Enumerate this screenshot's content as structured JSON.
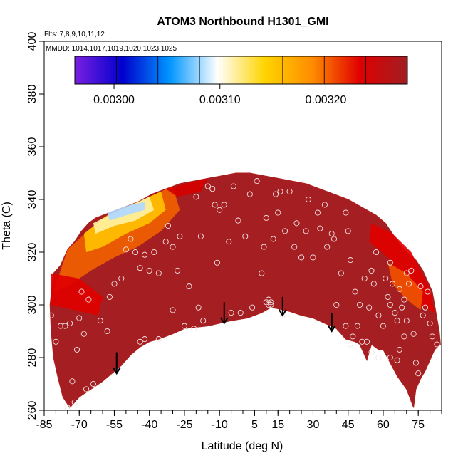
{
  "chart_data": {
    "type": "heatmap",
    "title": "ATOM3 Northbound H1301_GMI",
    "subtitle_flights": "Flts: 7,8,9,10,11,12",
    "subtitle_dates": "MMDD: 1014,1017,1019,1020,1023,1025",
    "xlabel": "Latitude (deg N)",
    "ylabel": "Theta (C)",
    "xlim": [
      -85,
      85
    ],
    "ylim": [
      260,
      400
    ],
    "x_ticks": [
      -85,
      -70,
      -55,
      -40,
      -25,
      -10,
      5,
      15,
      30,
      45,
      60,
      75
    ],
    "y_ticks": [
      260,
      280,
      300,
      320,
      340,
      360,
      380,
      400
    ],
    "colorbar": {
      "min": 0.002963,
      "max": 0.003277,
      "ticks": [
        0.003,
        0.0031,
        0.0032
      ],
      "tick_labels": [
        "0.00300",
        "0.00310",
        "0.00320"
      ],
      "stops": [
        "#7a1fe0",
        "#0000cd",
        "#0096ff",
        "#ffffff",
        "#ffd400",
        "#ff8c00",
        "#e00000",
        "#a01e22"
      ]
    },
    "field_colors": {
      "base": "#a41e22",
      "outline": "#b01f1f"
    },
    "field_boundary": [
      [
        -81,
        312
      ],
      [
        -78,
        315
      ],
      [
        -75,
        321
      ],
      [
        -72,
        324
      ],
      [
        -69,
        328
      ],
      [
        -66,
        331
      ],
      [
        -63,
        333
      ],
      [
        -57,
        335
      ],
      [
        -51,
        337
      ],
      [
        -45,
        339
      ],
      [
        -39,
        342
      ],
      [
        -33,
        344
      ],
      [
        -27,
        346
      ],
      [
        -21,
        347
      ],
      [
        -15,
        348
      ],
      [
        -9,
        349
      ],
      [
        -3,
        350
      ],
      [
        3,
        350
      ],
      [
        9,
        349
      ],
      [
        15,
        348
      ],
      [
        21,
        347
      ],
      [
        27,
        346
      ],
      [
        33,
        344
      ],
      [
        39,
        342
      ],
      [
        45,
        340
      ],
      [
        51,
        337
      ],
      [
        57,
        334
      ],
      [
        61,
        331
      ],
      [
        64,
        327
      ],
      [
        67,
        323
      ],
      [
        70,
        320
      ],
      [
        74,
        317
      ],
      [
        77,
        313
      ],
      [
        79,
        309
      ],
      [
        81,
        305
      ],
      [
        82,
        300
      ],
      [
        83,
        295
      ],
      [
        84,
        290
      ],
      [
        84.5,
        285
      ],
      [
        82,
        283
      ],
      [
        80,
        279
      ],
      [
        78,
        275
      ],
      [
        76,
        272
      ],
      [
        74,
        268
      ],
      [
        73,
        261
      ],
      [
        70,
        268
      ],
      [
        66,
        273
      ],
      [
        63,
        278
      ],
      [
        60,
        283
      ],
      [
        58,
        283
      ],
      [
        55,
        285
      ],
      [
        53,
        279
      ],
      [
        50,
        285
      ],
      [
        48,
        286
      ],
      [
        44,
        287
      ],
      [
        40,
        291
      ],
      [
        35,
        293
      ],
      [
        30,
        295
      ],
      [
        25,
        296
      ],
      [
        20,
        297.5
      ],
      [
        15,
        298.5
      ],
      [
        12,
        299
      ],
      [
        8,
        297
      ],
      [
        2,
        295
      ],
      [
        -5,
        294
      ],
      [
        -10,
        293
      ],
      [
        -15,
        292
      ],
      [
        -20,
        291.5
      ],
      [
        -25,
        291
      ],
      [
        -30,
        289
      ],
      [
        -36,
        287
      ],
      [
        -40,
        286
      ],
      [
        -44,
        284
      ],
      [
        -48,
        281
      ],
      [
        -52,
        277
      ],
      [
        -56,
        274
      ],
      [
        -60,
        271
      ],
      [
        -65,
        268
      ],
      [
        -70,
        265
      ],
      [
        -74,
        261
      ],
      [
        -77,
        265
      ],
      [
        -79,
        272
      ],
      [
        -81,
        280
      ],
      [
        -82,
        290
      ],
      [
        -82.5,
        300
      ]
    ],
    "high_regions": [
      {
        "name": "sh-upper-orange",
        "color": "#f06000",
        "points": [
          [
            -75,
            321
          ],
          [
            -60,
            333
          ],
          [
            -45,
            339
          ],
          [
            -30,
            345
          ],
          [
            -27,
            336
          ],
          [
            -35,
            328
          ],
          [
            -45,
            322
          ],
          [
            -55,
            318
          ],
          [
            -65,
            313
          ],
          [
            -75,
            307
          ],
          [
            -81,
            305
          ]
        ]
      },
      {
        "name": "sh-upper-yellow",
        "color": "#ffc000",
        "points": [
          [
            -68,
            327
          ],
          [
            -58,
            334
          ],
          [
            -45,
            339
          ],
          [
            -35,
            343
          ],
          [
            -33,
            336
          ],
          [
            -40,
            331
          ],
          [
            -50,
            327
          ],
          [
            -60,
            322
          ],
          [
            -67,
            320
          ]
        ]
      },
      {
        "name": "sh-upper-pale",
        "color": "#fff0a0",
        "points": [
          [
            -64,
            331
          ],
          [
            -55,
            335
          ],
          [
            -45,
            339
          ],
          [
            -40,
            341
          ],
          [
            -38,
            336
          ],
          [
            -46,
            332
          ],
          [
            -55,
            330
          ],
          [
            -63,
            327
          ]
        ]
      },
      {
        "name": "sh-upper-blue",
        "color": "#b0d8ff",
        "points": [
          [
            -58,
            335
          ],
          [
            -48,
            338
          ],
          [
            -42,
            339
          ],
          [
            -42,
            336
          ],
          [
            -50,
            334
          ],
          [
            -57,
            332
          ]
        ]
      },
      {
        "name": "sh-lower-red",
        "color": "#e00000",
        "points": [
          [
            -82,
            312
          ],
          [
            -70,
            310
          ],
          [
            -60,
            303
          ],
          [
            -62,
            296
          ],
          [
            -72,
            298
          ],
          [
            -82,
            300
          ]
        ]
      },
      {
        "name": "nh-red",
        "color": "#e00000",
        "points": [
          [
            55,
            331
          ],
          [
            64,
            327
          ],
          [
            72,
            320
          ],
          [
            80,
            306
          ],
          [
            82,
            297
          ],
          [
            76,
            300
          ],
          [
            70,
            308
          ],
          [
            62,
            318
          ],
          [
            54,
            324
          ]
        ]
      },
      {
        "name": "nh-orange",
        "color": "#f05000",
        "points": [
          [
            62,
            316
          ],
          [
            70,
            312
          ],
          [
            77,
            305
          ],
          [
            76,
            298
          ],
          [
            70,
            302
          ],
          [
            64,
            308
          ]
        ]
      },
      {
        "name": "nh-top-red",
        "color": "#d40000",
        "points": [
          [
            -33,
            344
          ],
          [
            -20,
            347
          ],
          [
            -15,
            348
          ],
          [
            -18,
            343
          ],
          [
            -28,
            341
          ]
        ]
      }
    ],
    "arrows": [
      {
        "lat": -54,
        "theta_top": 282,
        "theta_bottom": 274
      },
      {
        "lat": -8,
        "theta_top": 301,
        "theta_bottom": 293
      },
      {
        "lat": 17,
        "theta_top": 303,
        "theta_bottom": 296
      },
      {
        "lat": 38,
        "theta_top": 297,
        "theta_bottom": 290
      }
    ],
    "points": [
      [
        -82,
        296
      ],
      [
        -80,
        286
      ],
      [
        -78,
        292
      ],
      [
        -76,
        292
      ],
      [
        -74,
        293
      ],
      [
        -72,
        263
      ],
      [
        -75,
        261
      ],
      [
        -71,
        283
      ],
      [
        -69,
        305
      ],
      [
        -66,
        302
      ],
      [
        -64,
        270
      ],
      [
        -61,
        294
      ],
      [
        -57,
        303
      ],
      [
        -55,
        308
      ],
      [
        -52,
        310
      ],
      [
        -50,
        321
      ],
      [
        -48,
        325
      ],
      [
        -46,
        320
      ],
      [
        -44,
        314
      ],
      [
        -42,
        319
      ],
      [
        -40,
        313
      ],
      [
        -38,
        320
      ],
      [
        -36,
        312
      ],
      [
        -36,
        287
      ],
      [
        -33,
        324
      ],
      [
        -32,
        330
      ],
      [
        -30,
        322
      ],
      [
        -28,
        313
      ],
      [
        -27,
        326
      ],
      [
        -25,
        292
      ],
      [
        -23,
        307
      ],
      [
        -20,
        341
      ],
      [
        -19,
        299
      ],
      [
        -18,
        326
      ],
      [
        -17,
        294
      ],
      [
        -15,
        345
      ],
      [
        -13,
        344
      ],
      [
        -12,
        338
      ],
      [
        -11,
        316
      ],
      [
        -10,
        336
      ],
      [
        -8,
        338
      ],
      [
        -6,
        324
      ],
      [
        -4,
        345
      ],
      [
        -2,
        332
      ],
      [
        -1,
        297
      ],
      [
        1,
        326
      ],
      [
        3,
        342
      ],
      [
        4,
        299
      ],
      [
        6,
        347
      ],
      [
        8,
        312
      ],
      [
        9,
        322
      ],
      [
        10,
        333
      ],
      [
        11,
        302
      ],
      [
        12,
        301
      ],
      [
        13,
        325
      ],
      [
        14,
        342
      ],
      [
        15,
        335
      ],
      [
        16,
        343
      ],
      [
        17,
        296
      ],
      [
        18,
        328
      ],
      [
        20,
        343
      ],
      [
        22,
        322
      ],
      [
        23,
        331
      ],
      [
        25,
        318
      ],
      [
        27,
        328
      ],
      [
        28,
        340
      ],
      [
        30,
        318
      ],
      [
        32,
        335
      ],
      [
        33,
        329
      ],
      [
        35,
        338
      ],
      [
        36,
        322
      ],
      [
        38,
        327
      ],
      [
        39,
        325
      ],
      [
        40,
        300
      ],
      [
        42,
        312
      ],
      [
        44,
        335
      ],
      [
        45,
        328
      ],
      [
        46,
        317
      ],
      [
        48,
        305
      ],
      [
        50,
        300
      ],
      [
        52,
        310
      ],
      [
        54,
        299
      ],
      [
        55,
        313
      ],
      [
        56,
        308
      ],
      [
        57,
        320
      ],
      [
        58,
        296
      ],
      [
        60,
        292
      ],
      [
        61,
        310
      ],
      [
        62,
        303
      ],
      [
        63,
        300
      ],
      [
        64,
        308
      ],
      [
        65,
        297
      ],
      [
        66,
        294
      ],
      [
        67,
        306
      ],
      [
        68,
        299
      ],
      [
        69,
        302
      ],
      [
        70,
        294
      ],
      [
        71,
        308
      ],
      [
        72,
        313
      ],
      [
        73,
        289
      ],
      [
        74,
        278
      ],
      [
        75,
        274
      ],
      [
        76,
        307
      ],
      [
        77,
        296
      ],
      [
        78,
        299
      ],
      [
        79,
        305
      ],
      [
        80,
        293
      ],
      [
        81,
        288
      ],
      [
        83,
        285
      ],
      [
        46,
        285
      ],
      [
        51,
        286
      ],
      [
        53,
        286
      ],
      [
        63,
        280
      ],
      [
        66,
        279
      ],
      [
        55,
        282
      ],
      [
        58,
        280
      ],
      [
        67,
        283
      ],
      [
        69,
        288
      ],
      [
        10,
        301
      ],
      [
        11,
        300
      ],
      [
        -5,
        297
      ],
      [
        12,
        300
      ],
      [
        -58,
        290
      ],
      [
        -67,
        268
      ],
      [
        -73,
        271
      ],
      [
        -44,
        286
      ],
      [
        -42,
        287
      ],
      [
        -21,
        291
      ],
      [
        -30,
        298
      ],
      [
        70,
        312
      ],
      [
        63,
        316
      ],
      [
        44,
        292
      ],
      [
        47,
        288
      ],
      [
        49,
        292
      ],
      [
        -70,
        295
      ],
      [
        -68,
        289
      ]
    ]
  }
}
